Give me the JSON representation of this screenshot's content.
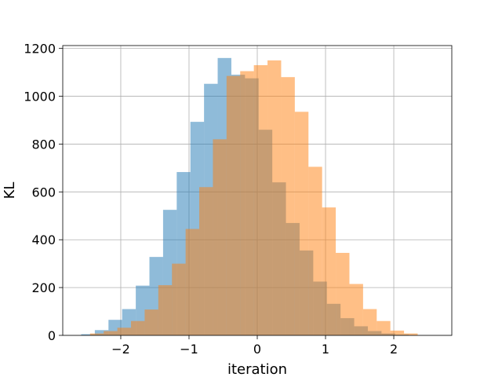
{
  "chart_data": {
    "type": "bar",
    "subtype": "overlaid-histogram",
    "title": "",
    "xlabel": "iteration",
    "ylabel": "KL",
    "xlim": [
      -2.85,
      2.85
    ],
    "ylim": [
      0,
      1212
    ],
    "xticks": [
      -2,
      -1,
      0,
      1,
      2
    ],
    "xtick_labels": [
      "−2",
      "−1",
      "0",
      "1",
      "2"
    ],
    "yticks": [
      0,
      200,
      400,
      600,
      800,
      1000,
      1200
    ],
    "ytick_labels": [
      "0",
      "200",
      "400",
      "600",
      "800",
      "1000",
      "1200"
    ],
    "grid": true,
    "legend": "none",
    "series": [
      {
        "color": "#1f77b4",
        "opacity": 0.5,
        "bins": [
          {
            "x0": -2.58,
            "x1": -2.38,
            "value": 5
          },
          {
            "x0": -2.38,
            "x1": -2.18,
            "value": 22
          },
          {
            "x0": -2.18,
            "x1": -1.98,
            "value": 65
          },
          {
            "x0": -1.98,
            "x1": -1.78,
            "value": 110
          },
          {
            "x0": -1.78,
            "x1": -1.58,
            "value": 208
          },
          {
            "x0": -1.58,
            "x1": -1.38,
            "value": 328
          },
          {
            "x0": -1.38,
            "x1": -1.18,
            "value": 525
          },
          {
            "x0": -1.18,
            "x1": -0.98,
            "value": 683
          },
          {
            "x0": -0.98,
            "x1": -0.78,
            "value": 893
          },
          {
            "x0": -0.78,
            "x1": -0.58,
            "value": 1052
          },
          {
            "x0": -0.58,
            "x1": -0.38,
            "value": 1160
          },
          {
            "x0": -0.38,
            "x1": -0.18,
            "value": 1090
          },
          {
            "x0": -0.18,
            "x1": 0.02,
            "value": 1075
          },
          {
            "x0": 0.02,
            "x1": 0.22,
            "value": 860
          },
          {
            "x0": 0.22,
            "x1": 0.42,
            "value": 640
          },
          {
            "x0": 0.42,
            "x1": 0.62,
            "value": 470
          },
          {
            "x0": 0.62,
            "x1": 0.82,
            "value": 355
          },
          {
            "x0": 0.82,
            "x1": 1.02,
            "value": 225
          },
          {
            "x0": 1.02,
            "x1": 1.22,
            "value": 132
          },
          {
            "x0": 1.22,
            "x1": 1.42,
            "value": 72
          },
          {
            "x0": 1.42,
            "x1": 1.62,
            "value": 38
          },
          {
            "x0": 1.62,
            "x1": 1.82,
            "value": 18
          },
          {
            "x0": 1.82,
            "x1": 2.02,
            "value": 8
          },
          {
            "x0": 2.02,
            "x1": 2.22,
            "value": 3
          }
        ]
      },
      {
        "color": "#ff7f0e",
        "opacity": 0.5,
        "bins": [
          {
            "x0": -2.45,
            "x1": -2.25,
            "value": 8
          },
          {
            "x0": -2.25,
            "x1": -2.05,
            "value": 18
          },
          {
            "x0": -2.05,
            "x1": -1.85,
            "value": 32
          },
          {
            "x0": -1.85,
            "x1": -1.65,
            "value": 60
          },
          {
            "x0": -1.65,
            "x1": -1.45,
            "value": 108
          },
          {
            "x0": -1.45,
            "x1": -1.25,
            "value": 210
          },
          {
            "x0": -1.25,
            "x1": -1.05,
            "value": 300
          },
          {
            "x0": -1.05,
            "x1": -0.85,
            "value": 445
          },
          {
            "x0": -0.85,
            "x1": -0.65,
            "value": 620
          },
          {
            "x0": -0.65,
            "x1": -0.45,
            "value": 820
          },
          {
            "x0": -0.45,
            "x1": -0.25,
            "value": 1085
          },
          {
            "x0": -0.25,
            "x1": -0.05,
            "value": 1105
          },
          {
            "x0": -0.05,
            "x1": 0.15,
            "value": 1130
          },
          {
            "x0": 0.15,
            "x1": 0.35,
            "value": 1150
          },
          {
            "x0": 0.35,
            "x1": 0.55,
            "value": 1080
          },
          {
            "x0": 0.55,
            "x1": 0.75,
            "value": 935
          },
          {
            "x0": 0.75,
            "x1": 0.95,
            "value": 705
          },
          {
            "x0": 0.95,
            "x1": 1.15,
            "value": 535
          },
          {
            "x0": 1.15,
            "x1": 1.35,
            "value": 345
          },
          {
            "x0": 1.35,
            "x1": 1.55,
            "value": 215
          },
          {
            "x0": 1.55,
            "x1": 1.75,
            "value": 110
          },
          {
            "x0": 1.75,
            "x1": 1.95,
            "value": 60
          },
          {
            "x0": 1.95,
            "x1": 2.15,
            "value": 20
          },
          {
            "x0": 2.15,
            "x1": 2.35,
            "value": 8
          }
        ]
      }
    ]
  }
}
